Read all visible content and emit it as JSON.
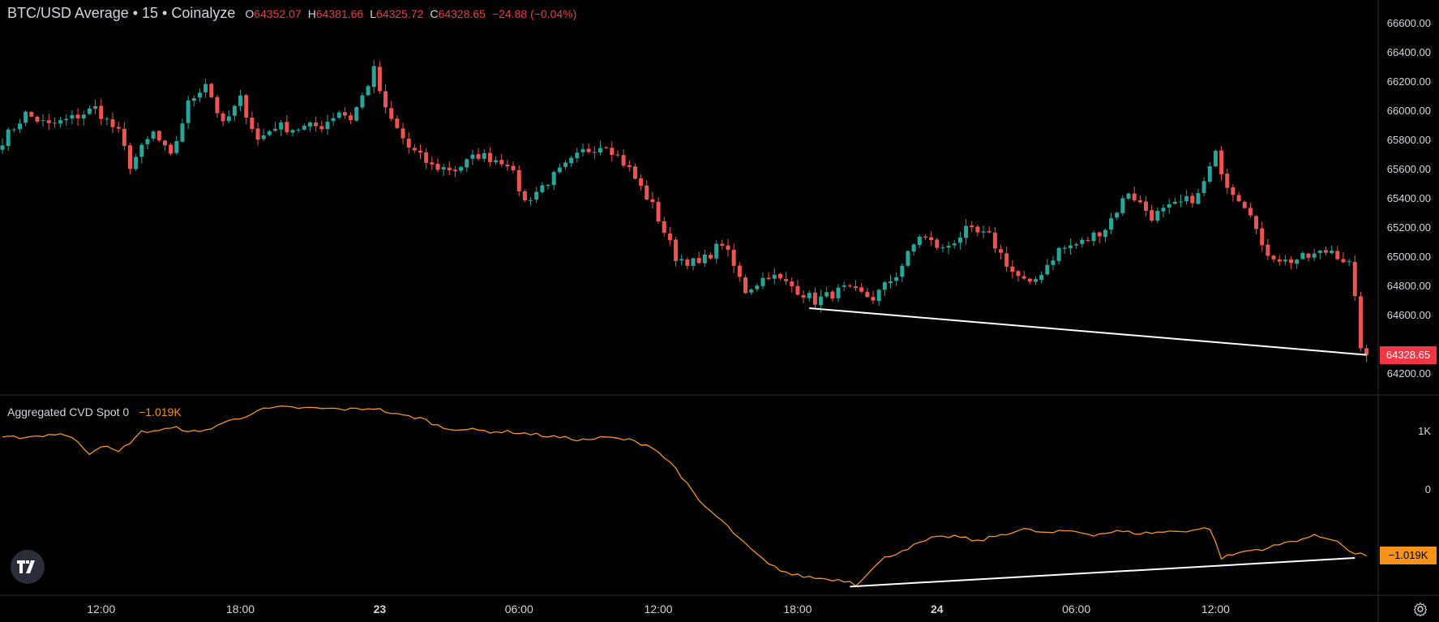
{
  "legend": {
    "title": "BTC/USD Average • 15 • Coinalyze",
    "o_label": "O",
    "o": "64352.07",
    "h_label": "H",
    "h": "64381.66",
    "l_label": "L",
    "l": "64325.72",
    "c_label": "C",
    "c": "64328.65",
    "change": "−24.88 (−0.04%)"
  },
  "indicator": {
    "name": "Aggregated CVD Spot 0",
    "value": "−1.019K"
  },
  "price_axis": {
    "labels": [
      "66600.00",
      "66400.00",
      "66200.00",
      "66000.00",
      "65800.00",
      "65600.00",
      "65400.00",
      "65200.00",
      "65000.00",
      "64800.00",
      "64600.00",
      "64400.00",
      "64200.00"
    ],
    "current_price": "64328.65"
  },
  "cvd_axis": {
    "labels": [
      "1K",
      "0"
    ],
    "current_value": "−1.019K"
  },
  "time_axis": [
    {
      "label": "12:00",
      "bold": false
    },
    {
      "label": "18:00",
      "bold": false
    },
    {
      "label": "23",
      "bold": true
    },
    {
      "label": "06:00",
      "bold": false
    },
    {
      "label": "12:00",
      "bold": false
    },
    {
      "label": "18:00",
      "bold": false
    },
    {
      "label": "24",
      "bold": true
    },
    {
      "label": "06:00",
      "bold": false
    },
    {
      "label": "12:00",
      "bold": false
    }
  ],
  "colors": {
    "up": "#26a69a",
    "down": "#ef5350",
    "cvd": "#f7931a",
    "trendline": "#ffffff",
    "grid": "#2a2e39"
  },
  "icons": {
    "logo": "tradingview-logo-icon",
    "settings": "gear-icon"
  },
  "chart_data": {
    "type": "candlestick",
    "interval": "15m",
    "price_range": [
      64150,
      66650
    ],
    "price_waypoints": [
      [
        0,
        65800
      ],
      [
        4,
        65980
      ],
      [
        8,
        65900
      ],
      [
        12,
        65950
      ],
      [
        16,
        66020
      ],
      [
        20,
        65850
      ],
      [
        22,
        65630
      ],
      [
        26,
        65850
      ],
      [
        29,
        65680
      ],
      [
        32,
        66050
      ],
      [
        35,
        66200
      ],
      [
        38,
        65900
      ],
      [
        41,
        66080
      ],
      [
        44,
        65800
      ],
      [
        47,
        65900
      ],
      [
        50,
        65880
      ],
      [
        55,
        65900
      ],
      [
        58,
        66000
      ],
      [
        60,
        65950
      ],
      [
        62,
        66100
      ],
      [
        64,
        66280
      ],
      [
        66,
        66000
      ],
      [
        70,
        65750
      ],
      [
        74,
        65620
      ],
      [
        78,
        65600
      ],
      [
        82,
        65700
      ],
      [
        87,
        65650
      ],
      [
        90,
        65380
      ],
      [
        94,
        65520
      ],
      [
        100,
        65720
      ],
      [
        104,
        65780
      ],
      [
        108,
        65600
      ],
      [
        112,
        65350
      ],
      [
        116,
        65000
      ],
      [
        120,
        64950
      ],
      [
        124,
        65100
      ],
      [
        128,
        64770
      ],
      [
        132,
        64880
      ],
      [
        136,
        64800
      ],
      [
        140,
        64700
      ],
      [
        145,
        64780
      ],
      [
        150,
        64720
      ],
      [
        154,
        64880
      ],
      [
        158,
        65150
      ],
      [
        162,
        65050
      ],
      [
        166,
        65180
      ],
      [
        170,
        65140
      ],
      [
        174,
        64900
      ],
      [
        177,
        64800
      ],
      [
        182,
        65050
      ],
      [
        186,
        65100
      ],
      [
        190,
        65200
      ],
      [
        194,
        65450
      ],
      [
        198,
        65280
      ],
      [
        202,
        65350
      ],
      [
        206,
        65420
      ],
      [
        209,
        65700
      ],
      [
        211,
        65500
      ],
      [
        215,
        65320
      ],
      [
        217,
        65050
      ],
      [
        221,
        64970
      ],
      [
        225,
        65000
      ],
      [
        229,
        65050
      ],
      [
        232,
        64950
      ],
      [
        233,
        64700
      ],
      [
        234,
        64400
      ],
      [
        235,
        64328.65
      ]
    ],
    "cvd_range": [
      -1500,
      1300
    ],
    "cvd_waypoints": [
      [
        0,
        750
      ],
      [
        6,
        780
      ],
      [
        10,
        820
      ],
      [
        13,
        700
      ],
      [
        15,
        520
      ],
      [
        17,
        640
      ],
      [
        20,
        540
      ],
      [
        24,
        840
      ],
      [
        30,
        900
      ],
      [
        34,
        830
      ],
      [
        38,
        980
      ],
      [
        41,
        1050
      ],
      [
        44,
        1170
      ],
      [
        48,
        1210
      ],
      [
        52,
        1200
      ],
      [
        56,
        1190
      ],
      [
        60,
        1180
      ],
      [
        64,
        1200
      ],
      [
        68,
        1100
      ],
      [
        72,
        1050
      ],
      [
        76,
        900
      ],
      [
        80,
        880
      ],
      [
        84,
        850
      ],
      [
        88,
        840
      ],
      [
        92,
        800
      ],
      [
        96,
        760
      ],
      [
        100,
        720
      ],
      [
        104,
        760
      ],
      [
        108,
        720
      ],
      [
        112,
        620
      ],
      [
        116,
        300
      ],
      [
        120,
        -200
      ],
      [
        124,
        -500
      ],
      [
        128,
        -850
      ],
      [
        132,
        -1150
      ],
      [
        136,
        -1300
      ],
      [
        140,
        -1350
      ],
      [
        144,
        -1380
      ],
      [
        146,
        -1400
      ],
      [
        147,
        -1450
      ],
      [
        149,
        -1280
      ],
      [
        152,
        -1050
      ],
      [
        156,
        -900
      ],
      [
        160,
        -760
      ],
      [
        164,
        -720
      ],
      [
        168,
        -800
      ],
      [
        172,
        -700
      ],
      [
        176,
        -620
      ],
      [
        180,
        -680
      ],
      [
        184,
        -640
      ],
      [
        188,
        -700
      ],
      [
        192,
        -650
      ],
      [
        196,
        -680
      ],
      [
        200,
        -660
      ],
      [
        204,
        -640
      ],
      [
        208,
        -600
      ],
      [
        210,
        -1050
      ],
      [
        214,
        -950
      ],
      [
        218,
        -900
      ],
      [
        222,
        -800
      ],
      [
        226,
        -720
      ],
      [
        230,
        -780
      ],
      [
        232,
        -960
      ],
      [
        235,
        -1019
      ]
    ],
    "trendlines": [
      {
        "pane": "price",
        "x1": 139,
        "y1": 64650,
        "x2": 235,
        "y2": 64330
      },
      {
        "pane": "cvd",
        "x1": 146,
        "y1": -1480,
        "x2": 233,
        "y2": -1050
      }
    ]
  }
}
